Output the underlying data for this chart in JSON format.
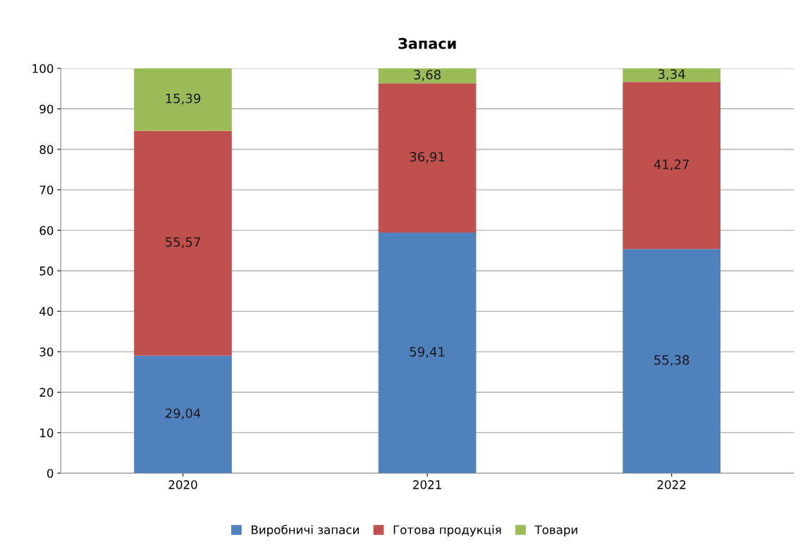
{
  "chart_data": {
    "type": "bar",
    "title": "Запаси",
    "categories": [
      "2020",
      "2021",
      "2022"
    ],
    "stacked": true,
    "series": [
      {
        "name": "Виробничі запаси",
        "color": "#4f81bd",
        "values": [
          29.04,
          59.41,
          55.38
        ],
        "value_labels": [
          "29,04",
          "59,41",
          "55,38"
        ]
      },
      {
        "name": "Готова продукція",
        "color": "#c0504d",
        "values": [
          55.57,
          36.91,
          41.27
        ],
        "value_labels": [
          "55,57",
          "36,91",
          "41,27"
        ]
      },
      {
        "name": "Товари",
        "color": "#9bbb59",
        "values": [
          15.39,
          3.68,
          3.34
        ],
        "value_labels": [
          "15,39",
          "3,68",
          "3,34"
        ]
      }
    ],
    "ylim": [
      0,
      100
    ],
    "yticks": [
      0,
      10,
      20,
      30,
      40,
      50,
      60,
      70,
      80,
      90,
      100
    ],
    "grid": "y",
    "legend": "bottom"
  }
}
